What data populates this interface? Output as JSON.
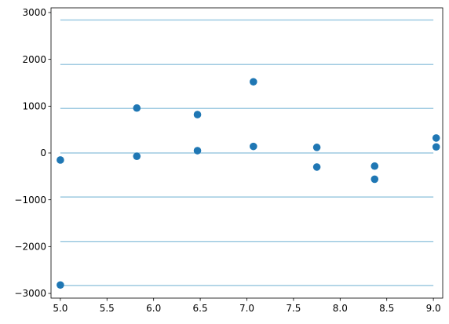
{
  "chart_data": {
    "type": "scatter",
    "title": "",
    "xlabel": "",
    "ylabel": "",
    "xlim": [
      4.9,
      9.1
    ],
    "ylim": [
      -3100,
      3100
    ],
    "x_ticks": [
      5.0,
      5.5,
      6.0,
      6.5,
      7.0,
      7.5,
      8.0,
      8.5,
      9.0
    ],
    "x_tick_labels": [
      "5.0",
      "5.5",
      "6.0",
      "6.5",
      "7.0",
      "7.5",
      "8.0",
      "8.5",
      "9.0"
    ],
    "y_ticks": [
      3000,
      2000,
      1000,
      0,
      -1000,
      -2000,
      -3000
    ],
    "y_tick_labels": [
      "3000",
      "2000",
      "1000",
      "0",
      "−1000",
      "−2000",
      "−3000"
    ],
    "grid": false,
    "legend": "none",
    "horizontal_lines": {
      "y": [
        2840,
        1890,
        950,
        0,
        -940,
        -1890,
        -2830
      ],
      "xmin": 5.0,
      "xmax": 9.0,
      "color": "#9ecae1"
    },
    "points": {
      "color": "#1f77b4",
      "x": [
        5.0,
        5.0,
        5.82,
        5.82,
        6.47,
        6.47,
        7.07,
        7.07,
        7.75,
        7.75,
        8.37,
        8.37,
        9.03,
        9.03
      ],
      "y": [
        -150,
        -2820,
        960,
        -70,
        820,
        50,
        1520,
        140,
        120,
        -300,
        -280,
        -560,
        320,
        130
      ]
    }
  }
}
